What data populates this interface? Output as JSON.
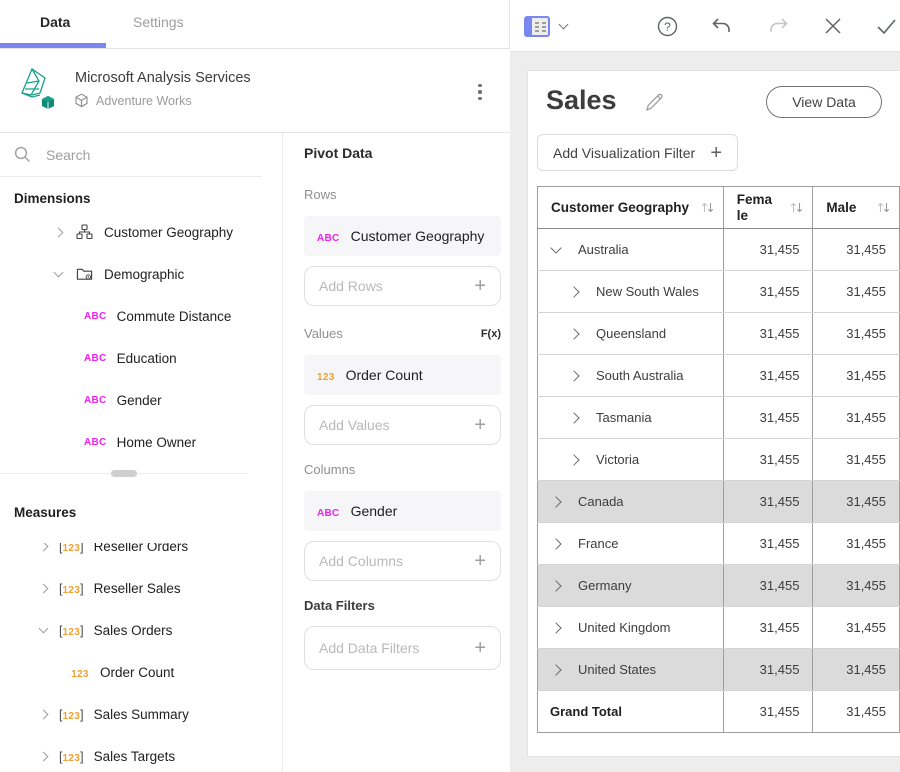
{
  "tabs": {
    "data": "Data",
    "settings": "Settings"
  },
  "toolbar": {
    "icons": [
      "pivot-grid",
      "chevron-down",
      "help",
      "undo",
      "redo",
      "close",
      "confirm"
    ]
  },
  "connection": {
    "title": "Microsoft Analysis Services",
    "subtitle": "Adventure Works"
  },
  "search": {
    "placeholder": "Search"
  },
  "icons": {
    "abc": "ABC",
    "num": "123"
  },
  "dimensions": {
    "heading": "Dimensions",
    "items": [
      {
        "label": "Customer Geography",
        "icon": "hierarchy",
        "chevron": "right",
        "depth": 1
      },
      {
        "label": "Demographic",
        "icon": "folder",
        "chevron": "down",
        "depth": 1
      },
      {
        "label": "Commute Distance",
        "icon": "abc",
        "chevron": null,
        "depth": 2
      },
      {
        "label": "Education",
        "icon": "abc",
        "chevron": null,
        "depth": 2
      },
      {
        "label": "Gender",
        "icon": "abc",
        "chevron": null,
        "depth": 2
      },
      {
        "label": "Home Owner",
        "icon": "abc",
        "chevron": null,
        "depth": 2
      }
    ]
  },
  "measures": {
    "heading": "Measures",
    "items": [
      {
        "label": "Reseller Orders",
        "icon": "num",
        "chevron": "right",
        "depth": 1,
        "clipped": true
      },
      {
        "label": "Reseller Sales",
        "icon": "num",
        "chevron": "right",
        "depth": 1
      },
      {
        "label": "Sales Orders",
        "icon": "num",
        "chevron": "down",
        "depth": 1
      },
      {
        "label": "Order Count",
        "icon": "num-child",
        "chevron": null,
        "depth": 2
      },
      {
        "label": "Sales Summary",
        "icon": "num",
        "chevron": "right",
        "depth": 1
      },
      {
        "label": "Sales Targets",
        "icon": "num",
        "chevron": "right",
        "depth": 1
      }
    ]
  },
  "pivot": {
    "title": "Pivot Data",
    "sections": {
      "rows": "Rows",
      "values": "Values",
      "columns": "Columns",
      "filters": "Data Filters"
    },
    "fx_label": "F(x)",
    "chips": {
      "rows": {
        "label": "Customer Geography",
        "icon": "abc"
      },
      "values": {
        "label": "Order Count",
        "icon": "num-child"
      },
      "columns": {
        "label": "Gender",
        "icon": "abc"
      }
    },
    "placeholders": {
      "rows": "Add Rows",
      "values": "Add Values",
      "columns": "Add Columns",
      "filters": "Add Data Filters"
    }
  },
  "canvas": {
    "title": "Sales",
    "view_data_label": "View Data",
    "add_filter_label": "Add Visualization Filter"
  },
  "table": {
    "headers": [
      "Customer Geography",
      "Female",
      "Male"
    ],
    "rows": [
      {
        "label": "Australia",
        "depth": 0,
        "chevron": "down",
        "shaded": false,
        "values": [
          "31,455",
          "31,455"
        ]
      },
      {
        "label": "New South Wales",
        "depth": 1,
        "chevron": "right",
        "shaded": false,
        "values": [
          "31,455",
          "31,455"
        ]
      },
      {
        "label": "Queensland",
        "depth": 1,
        "chevron": "right",
        "shaded": false,
        "values": [
          "31,455",
          "31,455"
        ]
      },
      {
        "label": "South Australia",
        "depth": 1,
        "chevron": "right",
        "shaded": false,
        "values": [
          "31,455",
          "31,455"
        ]
      },
      {
        "label": "Tasmania",
        "depth": 1,
        "chevron": "right",
        "shaded": false,
        "values": [
          "31,455",
          "31,455"
        ]
      },
      {
        "label": "Victoria",
        "depth": 1,
        "chevron": "right",
        "shaded": false,
        "values": [
          "31,455",
          "31,455"
        ]
      },
      {
        "label": "Canada",
        "depth": 0,
        "chevron": "right",
        "shaded": true,
        "values": [
          "31,455",
          "31,455"
        ]
      },
      {
        "label": "France",
        "depth": 0,
        "chevron": "right",
        "shaded": false,
        "values": [
          "31,455",
          "31,455"
        ]
      },
      {
        "label": "Germany",
        "depth": 0,
        "chevron": "right",
        "shaded": true,
        "values": [
          "31,455",
          "31,455"
        ]
      },
      {
        "label": "United Kingdom",
        "depth": 0,
        "chevron": "right",
        "shaded": false,
        "values": [
          "31,455",
          "31,455"
        ]
      },
      {
        "label": "United States",
        "depth": 0,
        "chevron": "right",
        "shaded": true,
        "values": [
          "31,455",
          "31,455"
        ]
      },
      {
        "label": "Grand Total",
        "depth": 0,
        "chevron": null,
        "shaded": false,
        "bold": true,
        "values": [
          "31,455",
          "31,455"
        ]
      }
    ]
  },
  "colors": {
    "accent": "#7b87f0",
    "abc": "#ee24ee",
    "num": "#f0a132",
    "shaded_row": "#dbdbdb",
    "logo_teal": "#17a08c"
  }
}
